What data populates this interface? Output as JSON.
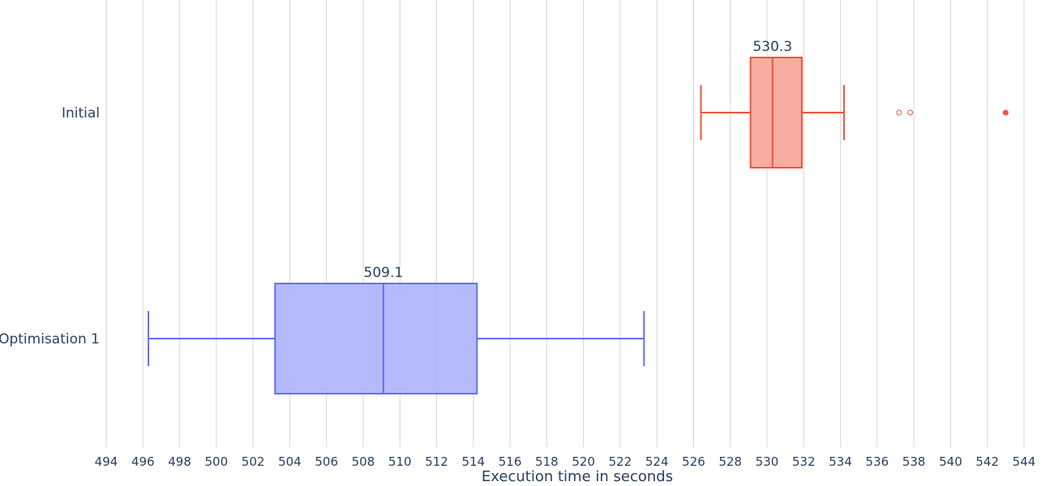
{
  "chart_data": {
    "type": "box",
    "orientation": "horizontal",
    "xlabel": "Execution time in seconds",
    "xlim": [
      494,
      544.4
    ],
    "xticks": [
      494,
      496,
      498,
      500,
      502,
      504,
      506,
      508,
      510,
      512,
      514,
      516,
      518,
      520,
      522,
      524,
      526,
      528,
      530,
      532,
      534,
      536,
      538,
      540,
      542,
      544
    ],
    "grid": true,
    "series": [
      {
        "name": "Initial",
        "color": "#ef553b",
        "fill": "#f8a99d",
        "min": 526.4,
        "q1": 529.1,
        "median": 530.3,
        "q3": 531.9,
        "max": 534.2,
        "outliers": [
          537.2,
          537.8
        ],
        "suspected_outliers": [
          543.0
        ],
        "annotation": "530.3"
      },
      {
        "name": "Optimisation 1",
        "color": "#636efa",
        "fill": "#b1b6fc",
        "min": 496.3,
        "q1": 503.2,
        "median": 509.1,
        "q3": 514.2,
        "max": 523.3,
        "outliers": [],
        "suspected_outliers": [],
        "annotation": "509.1"
      }
    ]
  }
}
